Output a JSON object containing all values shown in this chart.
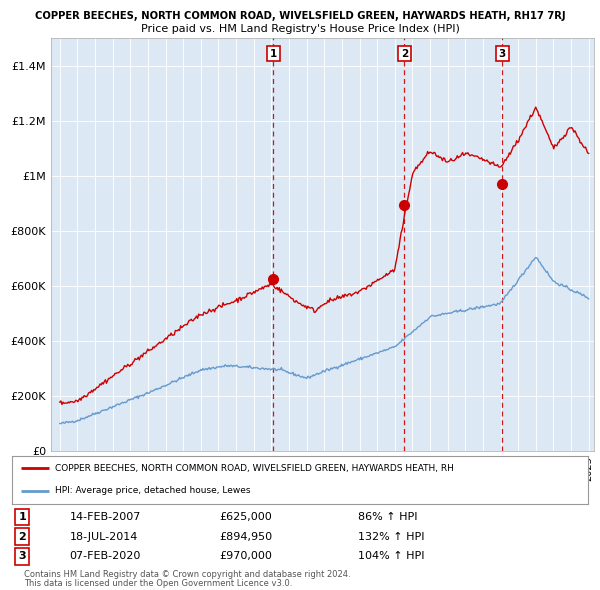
{
  "title_main": "COPPER BEECHES, NORTH COMMON ROAD, WIVELSFIELD GREEN, HAYWARDS HEATH, RH17 7RJ",
  "title_sub": "Price paid vs. HM Land Registry's House Price Index (HPI)",
  "legend_line1": "COPPER BEECHES, NORTH COMMON ROAD, WIVELSFIELD GREEN, HAYWARDS HEATH, RH",
  "legend_line2": "HPI: Average price, detached house, Lewes",
  "transactions": [
    {
      "num": 1,
      "date": "14-FEB-2007",
      "x_year": 2007.12,
      "price": 625000,
      "pct": "86%",
      "dir": "↑"
    },
    {
      "num": 2,
      "date": "18-JUL-2014",
      "x_year": 2014.54,
      "price": 894950,
      "pct": "132%",
      "dir": "↑"
    },
    {
      "num": 3,
      "date": "07-FEB-2020",
      "x_year": 2020.1,
      "price": 970000,
      "pct": "104%",
      "dir": "↑"
    }
  ],
  "footer1": "Contains HM Land Registry data © Crown copyright and database right 2024.",
  "footer2": "This data is licensed under the Open Government Licence v3.0.",
  "red_color": "#cc0000",
  "blue_color": "#6699cc",
  "chart_bg": "#dce9f5",
  "dashed_color": "#cc0000",
  "background_color": "#ffffff",
  "grid_color": "#ffffff",
  "ylim": [
    0,
    1500000
  ],
  "xlim_start": 1994.5,
  "xlim_end": 2025.3
}
